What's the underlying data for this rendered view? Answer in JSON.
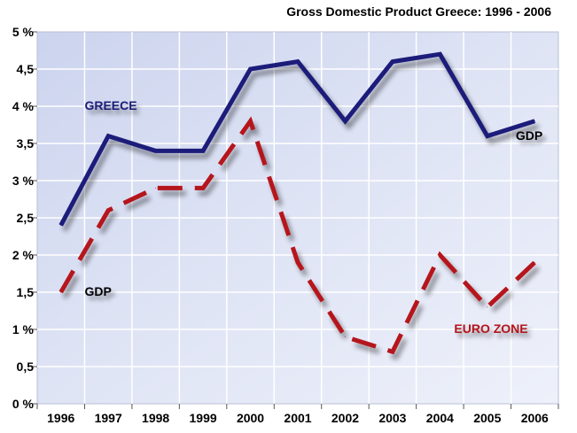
{
  "chart_data": {
    "type": "line",
    "title": "Gross Domestic Product Greece: 1996 - 2006",
    "xlabel": "",
    "ylabel": "",
    "categories": [
      "1996",
      "1997",
      "1998",
      "1999",
      "2000",
      "2001",
      "2002",
      "2003",
      "2004",
      "2005",
      "2006"
    ],
    "ylim": [
      0,
      5
    ],
    "yticks": [
      0,
      0.5,
      1,
      1.5,
      2,
      2.5,
      3,
      3.5,
      4,
      4.5,
      5
    ],
    "ytick_labels": [
      "0 %",
      "0,5",
      "1 %",
      "1,5",
      "2 %",
      "2,5",
      "3 %",
      "3,5",
      "4 %",
      "4,5",
      "5 %"
    ],
    "grid": true,
    "background_color": "#dde3f3",
    "series": [
      {
        "name": "GREECE",
        "values": [
          2.4,
          3.6,
          3.4,
          3.4,
          4.5,
          4.6,
          3.8,
          4.6,
          4.7,
          3.6,
          3.8
        ],
        "color": "#1a1a7a",
        "style": "solid"
      },
      {
        "name": "EURO ZONE",
        "values": [
          1.5,
          2.6,
          2.9,
          2.9,
          3.8,
          1.9,
          0.9,
          0.7,
          2.0,
          1.3,
          1.9
        ],
        "color": "#b5121b",
        "style": "dashed"
      }
    ],
    "annotations": [
      {
        "text": "GREECE",
        "color": "#1a1a7a",
        "x": "1996.5",
        "y": 3.95
      },
      {
        "text": "GDP",
        "color": "#000000",
        "x": "2005.6",
        "y": 3.55
      },
      {
        "text": "GDP",
        "color": "#000000",
        "x": "1996.5",
        "y": 1.45
      },
      {
        "text": "EURO ZONE",
        "color": "#b5121b",
        "x": "2004.3",
        "y": 0.95
      }
    ]
  }
}
